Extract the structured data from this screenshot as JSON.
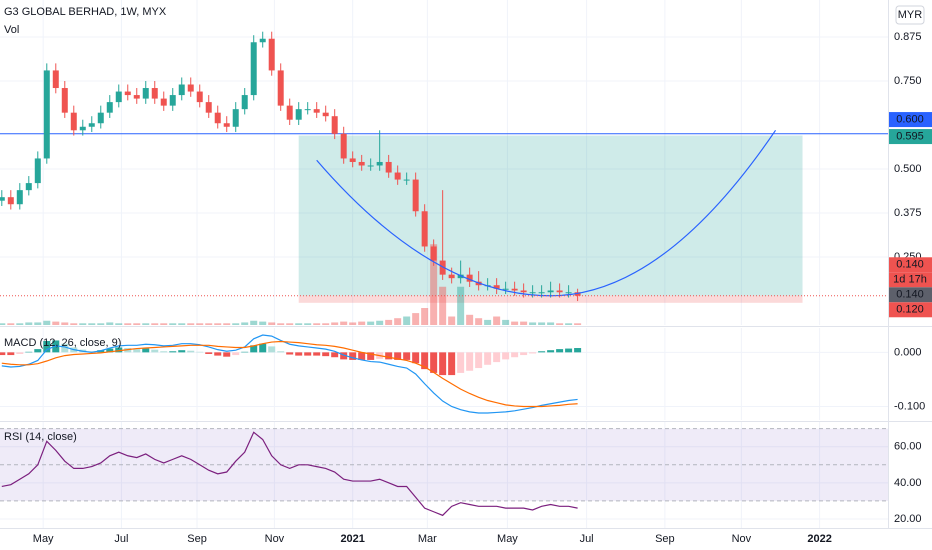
{
  "chart_data": [
    {
      "type": "candlestick",
      "title": "G3 GLOBAL BERHAD, 1W, MYX",
      "volume_label": "Vol",
      "currency": "MYR",
      "xlim": [
        -0.2,
        98.5
      ],
      "ylim": [
        0.057,
        0.98
      ],
      "yticks": [
        {
          "value": 0.25,
          "label": "0.250"
        },
        0.375,
        {
          "value": 0.5,
          "label": "0.500"
        },
        {
          "value": 0.75,
          "label": "0.750"
        },
        0.875
      ],
      "xticks": [
        {
          "value": 4.6,
          "label": "May"
        },
        {
          "value": 13.3,
          "label": "Jul"
        },
        {
          "value": 21.7,
          "label": "Sep"
        },
        {
          "value": 30.3,
          "label": "Nov"
        },
        {
          "value": 39,
          "label": "2021"
        },
        {
          "value": 47.3,
          "label": "Mar"
        },
        {
          "value": 56.2,
          "label": "May"
        },
        {
          "value": 65,
          "label": "Jul"
        },
        {
          "value": 73.7,
          "label": "Sep"
        },
        {
          "value": 82.2,
          "label": "Nov"
        },
        {
          "value": 90.9,
          "label": "2022"
        }
      ],
      "grid": true,
      "up_color": "#26a69a",
      "down_color": "#ef5350",
      "open": [
        0.41,
        0.42,
        0.4,
        0.44,
        0.46,
        0.53,
        0.78,
        0.73,
        0.66,
        0.61,
        0.62,
        0.63,
        0.66,
        0.69,
        0.72,
        0.71,
        0.7,
        0.73,
        0.7,
        0.68,
        0.71,
        0.74,
        0.72,
        0.69,
        0.66,
        0.63,
        0.62,
        0.67,
        0.71,
        0.86,
        0.87,
        0.78,
        0.68,
        0.64,
        0.67,
        0.67,
        0.66,
        0.65,
        0.6,
        0.53,
        0.52,
        0.51,
        0.51,
        0.52,
        0.49,
        0.47,
        0.47,
        0.38,
        0.28,
        0.24,
        0.2,
        0.19,
        0.2,
        0.18,
        0.17,
        0.17,
        0.16,
        0.16,
        0.155,
        0.15,
        0.15,
        0.15,
        0.155,
        0.15,
        0.15
      ],
      "high": [
        0.44,
        0.44,
        0.46,
        0.48,
        0.55,
        0.8,
        0.8,
        0.75,
        0.68,
        0.64,
        0.65,
        0.68,
        0.71,
        0.74,
        0.74,
        0.73,
        0.75,
        0.75,
        0.72,
        0.73,
        0.76,
        0.76,
        0.74,
        0.71,
        0.68,
        0.65,
        0.69,
        0.73,
        0.88,
        0.89,
        0.89,
        0.8,
        0.7,
        0.69,
        0.69,
        0.69,
        0.68,
        0.67,
        0.62,
        0.55,
        0.54,
        0.53,
        0.61,
        0.54,
        0.51,
        0.49,
        0.49,
        0.4,
        0.3,
        0.44,
        0.22,
        0.24,
        0.22,
        0.21,
        0.19,
        0.19,
        0.18,
        0.18,
        0.175,
        0.17,
        0.17,
        0.18,
        0.175,
        0.17,
        0.16
      ],
      "low": [
        0.395,
        0.385,
        0.385,
        0.425,
        0.445,
        0.515,
        0.715,
        0.645,
        0.595,
        0.595,
        0.605,
        0.615,
        0.645,
        0.675,
        0.695,
        0.685,
        0.685,
        0.685,
        0.665,
        0.665,
        0.695,
        0.705,
        0.675,
        0.645,
        0.615,
        0.605,
        0.605,
        0.655,
        0.695,
        0.845,
        0.765,
        0.665,
        0.625,
        0.625,
        0.655,
        0.645,
        0.635,
        0.585,
        0.515,
        0.505,
        0.495,
        0.495,
        0.495,
        0.475,
        0.455,
        0.455,
        0.365,
        0.265,
        0.225,
        0.185,
        0.175,
        0.175,
        0.165,
        0.155,
        0.155,
        0.145,
        0.145,
        0.14,
        0.135,
        0.135,
        0.135,
        0.135,
        0.135,
        0.135,
        0.125
      ],
      "close": [
        0.42,
        0.4,
        0.44,
        0.46,
        0.53,
        0.78,
        0.73,
        0.66,
        0.61,
        0.62,
        0.63,
        0.66,
        0.69,
        0.72,
        0.71,
        0.7,
        0.73,
        0.7,
        0.68,
        0.71,
        0.74,
        0.72,
        0.69,
        0.66,
        0.63,
        0.62,
        0.67,
        0.71,
        0.86,
        0.87,
        0.78,
        0.68,
        0.64,
        0.67,
        0.67,
        0.66,
        0.65,
        0.6,
        0.53,
        0.52,
        0.51,
        0.51,
        0.52,
        0.49,
        0.47,
        0.47,
        0.38,
        0.28,
        0.24,
        0.2,
        0.19,
        0.2,
        0.18,
        0.17,
        0.17,
        0.16,
        0.16,
        0.155,
        0.15,
        0.15,
        0.15,
        0.155,
        0.15,
        0.15,
        0.14
      ],
      "volume": [
        2,
        2,
        2,
        3,
        3,
        5,
        4,
        3,
        2,
        2,
        2,
        2,
        3,
        2,
        2,
        2,
        2,
        2,
        2,
        2,
        2,
        2,
        2,
        2,
        2,
        2,
        2,
        3,
        5,
        4,
        3,
        2,
        2,
        2,
        2,
        2,
        2,
        3,
        4,
        3,
        4,
        4,
        5,
        6,
        8,
        10,
        14,
        20,
        95,
        45,
        10,
        45,
        12,
        8,
        6,
        10,
        6,
        4,
        4,
        3,
        3,
        3,
        2,
        2,
        2
      ],
      "volume_lim": [
        0,
        100
      ],
      "hline": {
        "value": 0.6,
        "label": "0.600",
        "color": "#2962ff"
      },
      "position": {
        "x": [
          33,
          89
        ],
        "target": {
          "value": 0.595,
          "label": "0.595"
        },
        "entry": {
          "value": 0.14,
          "label": "0.140"
        },
        "stop": {
          "value": 0.12,
          "label": "0.120"
        }
      },
      "last": {
        "value": 0.14,
        "label": "0.140",
        "countdown": "1d 17h"
      },
      "curve": {
        "x": [
          35,
          61,
          86
        ],
        "y": [
          0.525,
          0.14,
          0.61
        ],
        "color": "#2962ff"
      }
    },
    {
      "type": "macd",
      "title": "MACD (12, 26, close, 9)",
      "ylim": [
        -0.125,
        0.045
      ],
      "yticks": [
        {
          "value": 0,
          "label": "0.000"
        },
        {
          "value": -0.1,
          "label": "-0.100"
        }
      ],
      "series": [
        {
          "name": "MACD",
          "color": "#2196f3",
          "values": [
            -0.025,
            -0.027,
            -0.026,
            -0.022,
            -0.015,
            0.005,
            0.012,
            0.01,
            0.005,
            0.002,
            0.0,
            0.003,
            0.008,
            0.012,
            0.013,
            0.013,
            0.015,
            0.014,
            0.012,
            0.013,
            0.016,
            0.016,
            0.014,
            0.01,
            0.005,
            0.002,
            0.004,
            0.01,
            0.025,
            0.032,
            0.03,
            0.022,
            0.015,
            0.012,
            0.01,
            0.008,
            0.006,
            0.002,
            -0.005,
            -0.01,
            -0.014,
            -0.017,
            -0.018,
            -0.022,
            -0.026,
            -0.029,
            -0.04,
            -0.058,
            -0.075,
            -0.09,
            -0.1,
            -0.106,
            -0.11,
            -0.112,
            -0.112,
            -0.111,
            -0.11,
            -0.108,
            -0.105,
            -0.102,
            -0.098,
            -0.095,
            -0.092,
            -0.089,
            -0.087
          ]
        },
        {
          "name": "Signal",
          "color": "#ff6d00",
          "values": [
            -0.02,
            -0.022,
            -0.023,
            -0.023,
            -0.021,
            -0.016,
            -0.01,
            -0.006,
            -0.004,
            -0.003,
            -0.002,
            -0.001,
            0.001,
            0.003,
            0.005,
            0.007,
            0.008,
            0.009,
            0.01,
            0.011,
            0.012,
            0.013,
            0.013,
            0.013,
            0.011,
            0.01,
            0.009,
            0.009,
            0.012,
            0.016,
            0.019,
            0.02,
            0.019,
            0.018,
            0.016,
            0.014,
            0.013,
            0.011,
            0.008,
            0.004,
            0.0,
            -0.003,
            -0.006,
            -0.009,
            -0.012,
            -0.015,
            -0.02,
            -0.027,
            -0.037,
            -0.048,
            -0.058,
            -0.068,
            -0.076,
            -0.083,
            -0.089,
            -0.093,
            -0.097,
            -0.099,
            -0.1,
            -0.1,
            -0.1,
            -0.099,
            -0.098,
            -0.096,
            -0.095
          ]
        }
      ],
      "histogram": [
        -0.005,
        -0.005,
        -0.003,
        0.001,
        0.006,
        0.021,
        0.022,
        0.016,
        0.009,
        0.005,
        0.002,
        0.004,
        0.007,
        0.009,
        0.008,
        0.006,
        0.007,
        0.005,
        0.002,
        0.002,
        0.004,
        0.003,
        0.001,
        -0.003,
        -0.006,
        -0.008,
        -0.005,
        0.001,
        0.013,
        0.016,
        0.011,
        0.002,
        -0.004,
        -0.006,
        -0.006,
        -0.006,
        -0.007,
        -0.009,
        -0.013,
        -0.014,
        -0.014,
        -0.014,
        -0.012,
        -0.013,
        -0.014,
        -0.014,
        -0.02,
        -0.031,
        -0.038,
        -0.042,
        -0.042,
        -0.038,
        -0.034,
        -0.029,
        -0.023,
        -0.018,
        -0.013,
        -0.009,
        -0.005,
        -0.002,
        0.002,
        0.004,
        0.006,
        0.007,
        0.008
      ],
      "histogram_colors": [
        "#26a69a",
        "#b2dfdb",
        "#ffcdd2",
        "#ef5350"
      ]
    },
    {
      "type": "line",
      "title": "RSI (14, close)",
      "ylim": [
        15,
        73.7
      ],
      "yticks": [
        {
          "value": 20,
          "label": "20.00"
        },
        {
          "value": 40,
          "label": "40.00"
        },
        {
          "value": 60,
          "label": "60.00"
        }
      ],
      "band": [
        30,
        70
      ],
      "mid": 50,
      "band_color": "rgba(126,87,194,0.12)",
      "series": [
        {
          "name": "RSI",
          "color": "#7b1f7e",
          "values": [
            38,
            39,
            42,
            45,
            50,
            63,
            58,
            52,
            48,
            48,
            49,
            51,
            55,
            57,
            55,
            54,
            56,
            53,
            51,
            53,
            55,
            53,
            50,
            47,
            45,
            46,
            52,
            57,
            68,
            64,
            55,
            50,
            48,
            50,
            50,
            49,
            48,
            46,
            42,
            41,
            41,
            41,
            42,
            40,
            38,
            38,
            32,
            26,
            24,
            22,
            27,
            29,
            28,
            27,
            27,
            27,
            26,
            26,
            26,
            25,
            27,
            28,
            27,
            27,
            26
          ]
        }
      ]
    }
  ]
}
